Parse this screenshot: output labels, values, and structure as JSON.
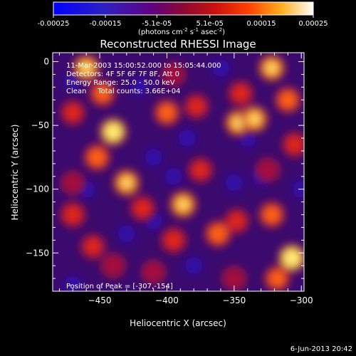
{
  "chart_data": {
    "type": "heatmap",
    "title": "Reconstructed RHESSI Image",
    "xlabel": "Heliocentric X (arcsec)",
    "ylabel": "Heliocentric Y (arcsec)",
    "xlim": [
      -485,
      -298
    ],
    "ylim": [
      -180,
      7
    ],
    "x_ticks": [
      -450,
      -400,
      -350,
      -300
    ],
    "y_ticks": [
      0,
      -50,
      -100,
      -150
    ],
    "colorbar": {
      "ticks": [
        "-0.00025",
        "-0.00015",
        "-5.1e-05",
        "5.1e-05",
        "0.00015",
        "0.00025"
      ],
      "tick_values": [
        -0.00025,
        -0.00015,
        -5.1e-05,
        5.1e-05,
        0.00015,
        0.00025
      ],
      "units_text": "(photons cm",
      "units_exp1": "-2",
      "units_mid": " s",
      "units_exp2": "-1",
      "units_end": " asec",
      "units_exp3": "-2",
      "units_close": ")"
    },
    "annotations": [
      "11-Mar-2003 15:00:52.000 to 15:05:44.000",
      "Detectors: 4F 5F 6F 7F 8F, Att 0",
      "Energy Range: 25.0 - 50.0 keV",
      "Clean     Total counts: 3.66E+04"
    ],
    "peak_label": "Position of Peak = [-307,-154]",
    "peak": {
      "x": -307,
      "y": -154
    },
    "date_stamp": "6-Jun-2013 20:42",
    "blobs": [
      {
        "x": -460,
        "y": -5,
        "v": 0.9
      },
      {
        "x": -448,
        "y": -25,
        "v": 0.7
      },
      {
        "x": -440,
        "y": -55,
        "v": 0.95
      },
      {
        "x": -452,
        "y": -75,
        "v": 0.8
      },
      {
        "x": -470,
        "y": -40,
        "v": 0.55
      },
      {
        "x": -400,
        "y": -40,
        "v": 0.75
      },
      {
        "x": -378,
        "y": -35,
        "v": 0.55
      },
      {
        "x": -395,
        "y": -10,
        "v": 0.4
      },
      {
        "x": -347,
        "y": -48,
        "v": 0.85
      },
      {
        "x": -335,
        "y": -45,
        "v": 0.9
      },
      {
        "x": -345,
        "y": -25,
        "v": 0.6
      },
      {
        "x": -322,
        "y": -5,
        "v": 0.85
      },
      {
        "x": -310,
        "y": -30,
        "v": 0.75
      },
      {
        "x": -305,
        "y": -65,
        "v": 0.6
      },
      {
        "x": -325,
        "y": -85,
        "v": 0.45
      },
      {
        "x": -430,
        "y": -95,
        "v": 0.85
      },
      {
        "x": -418,
        "y": -115,
        "v": 0.6
      },
      {
        "x": -388,
        "y": -112,
        "v": 0.9
      },
      {
        "x": -395,
        "y": -140,
        "v": 0.65
      },
      {
        "x": -362,
        "y": -135,
        "v": 0.8
      },
      {
        "x": -348,
        "y": -125,
        "v": 0.55
      },
      {
        "x": -470,
        "y": -120,
        "v": 0.65
      },
      {
        "x": -455,
        "y": -145,
        "v": 0.55
      },
      {
        "x": -440,
        "y": -160,
        "v": 0.5
      },
      {
        "x": -322,
        "y": -120,
        "v": 0.75
      },
      {
        "x": -307,
        "y": -154,
        "v": 1.0
      },
      {
        "x": -318,
        "y": -170,
        "v": 0.7
      },
      {
        "x": -375,
        "y": -85,
        "v": 0.55
      },
      {
        "x": -470,
        "y": -95,
        "v": 0.4
      },
      {
        "x": -410,
        "y": -165,
        "v": 0.4
      },
      {
        "x": -350,
        "y": -170,
        "v": 0.45
      }
    ]
  }
}
